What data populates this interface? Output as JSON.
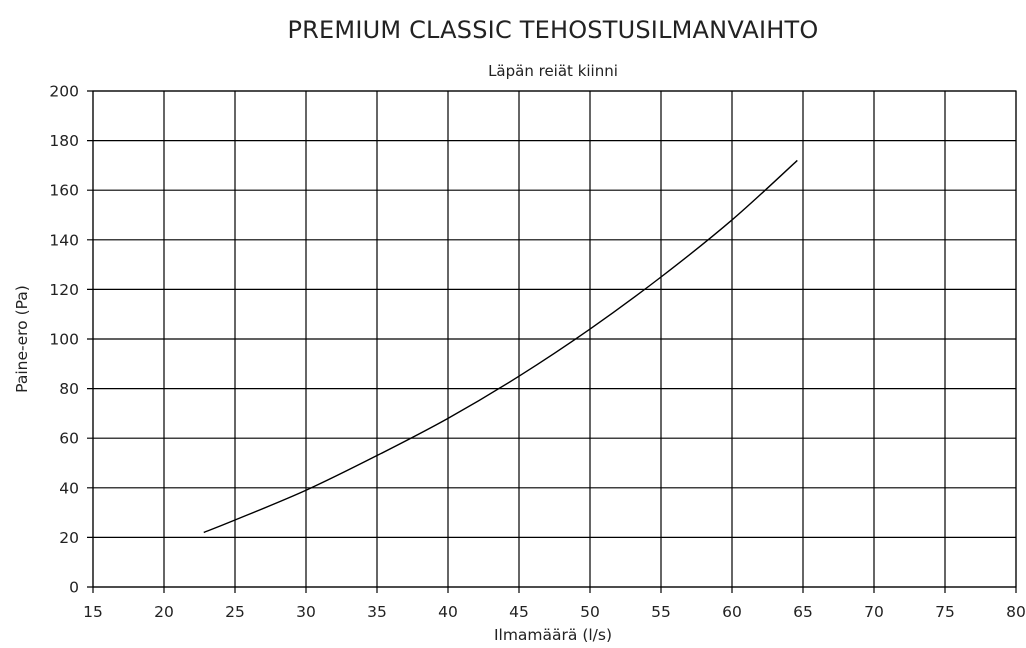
{
  "chart_data": {
    "type": "line",
    "title": "PREMIUM CLASSIC TEHOSTUSILMANVAIHTO",
    "subtitle": "Läpän reiät kiinni",
    "xlabel": "Ilmamäärä (l/s)",
    "ylabel": "Paine-ero (Pa)",
    "xlim": [
      15,
      80
    ],
    "ylim": [
      0,
      200
    ],
    "xticks": [
      "15",
      "20",
      "25",
      "30",
      "35",
      "40",
      "45",
      "50",
      "55",
      "60",
      "65",
      "70",
      "75",
      "80"
    ],
    "yticks": [
      "0",
      "20",
      "40",
      "60",
      "80",
      "100",
      "120",
      "140",
      "160",
      "180",
      "200"
    ],
    "grid": true,
    "series": [
      {
        "x": [
          22.8,
          25,
          30,
          35,
          40,
          45,
          50,
          55,
          60,
          64.6
        ],
        "y": [
          22,
          27,
          39,
          53,
          68,
          85,
          104,
          125,
          148,
          172
        ]
      }
    ]
  }
}
